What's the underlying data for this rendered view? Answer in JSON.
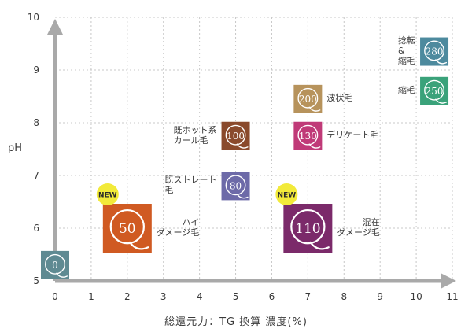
{
  "chart_data": {
    "type": "scatter",
    "xlabel": "総還元力：TG 換算 濃度(%)",
    "ylabel": "pH",
    "xlim": [
      0,
      11
    ],
    "ylim": [
      5,
      10
    ],
    "xticks": [
      "0",
      "1",
      "2",
      "3",
      "4",
      "5",
      "6",
      "7",
      "8",
      "9",
      "10",
      "11"
    ],
    "yticks": [
      "5",
      "6",
      "7",
      "8",
      "9",
      "10"
    ],
    "grid": true,
    "points": [
      {
        "value": "0",
        "x": 0,
        "y": 5.3,
        "size": "small",
        "color": "#5f8a92",
        "label": "",
        "label_side": "right",
        "is_new": false
      },
      {
        "value": "50",
        "x": 2,
        "y": 6.0,
        "size": "large",
        "color": "#d05a22",
        "label": "ハイ\nダメージ毛",
        "label_side": "right",
        "is_new": true
      },
      {
        "value": "80",
        "x": 5,
        "y": 6.8,
        "size": "small",
        "color": "#6d6aa8",
        "label": "既ストレート\n毛",
        "label_side": "left",
        "is_new": false
      },
      {
        "value": "100",
        "x": 5,
        "y": 7.75,
        "size": "small",
        "color": "#8a4a2c",
        "label": "既ホット系\nカール毛",
        "label_side": "left",
        "is_new": false
      },
      {
        "value": "110",
        "x": 7,
        "y": 6.0,
        "size": "large",
        "color": "#7b2a6a",
        "label": "混在\nダメージ毛",
        "label_side": "right",
        "is_new": true
      },
      {
        "value": "130",
        "x": 7,
        "y": 7.75,
        "size": "small",
        "color": "#c03a78",
        "label": "デリケート毛",
        "label_side": "right",
        "is_new": false
      },
      {
        "value": "200",
        "x": 7,
        "y": 8.45,
        "size": "small",
        "color": "#b7935c",
        "label": "波状毛",
        "label_side": "right",
        "is_new": false
      },
      {
        "value": "250",
        "x": 10.5,
        "y": 8.6,
        "size": "small",
        "color": "#3aa27a",
        "label": "縮毛",
        "label_side": "left",
        "is_new": false
      },
      {
        "value": "280",
        "x": 10.5,
        "y": 9.35,
        "size": "small",
        "color": "#4d8a9e",
        "label": "捻転\n&\n縮毛",
        "label_side": "left",
        "is_new": false
      }
    ],
    "new_badge_text": "NEW"
  },
  "colors": {
    "axis": "#a9a9a9",
    "grid": "#c8c8c8",
    "tick_text": "#3a3a3a",
    "new_badge_fill": "#f2ea3a",
    "new_badge_text": "#2a2a2a",
    "q_glyph": "#ffffff"
  }
}
